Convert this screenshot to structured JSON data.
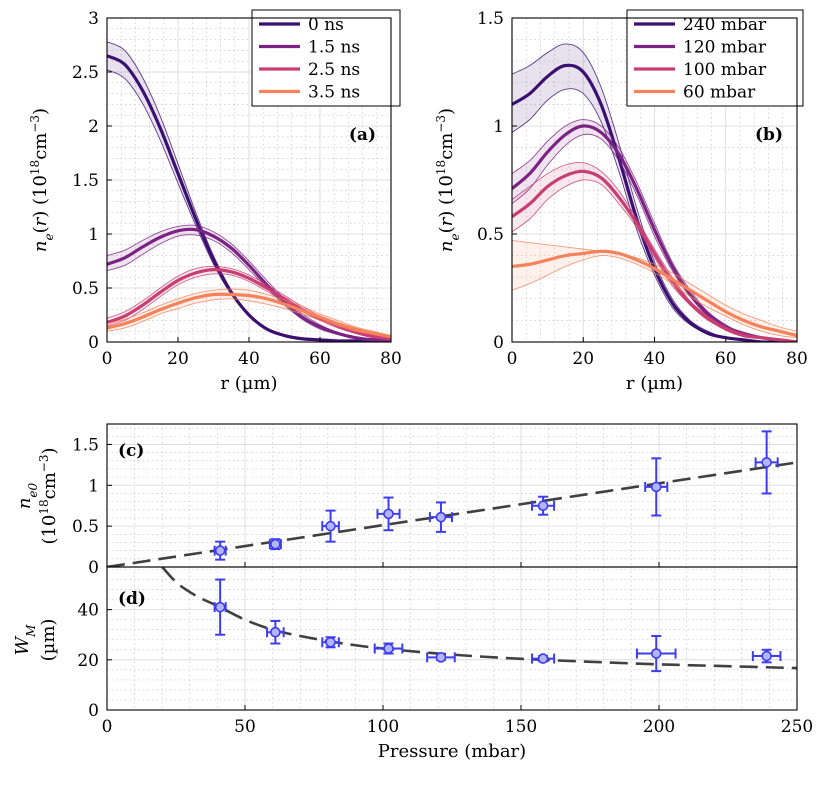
{
  "figure": {
    "background": "#ffffff"
  },
  "chart_data": [
    {
      "id": "a",
      "type": "line",
      "panel_label": "(a)",
      "xlabel": "r (µm)",
      "ylabel": "n_e(r)  (10^18 cm^-3)",
      "xlim": [
        0,
        80
      ],
      "ylim": [
        0,
        3
      ],
      "xticks": [
        0,
        20,
        40,
        60,
        80
      ],
      "xtick_labels": [
        "0",
        "20",
        "40",
        "60",
        "80"
      ],
      "yticks": [
        0,
        0.5,
        1,
        1.5,
        2,
        2.5,
        3
      ],
      "ytick_labels": [
        "0",
        "0.5",
        "1",
        "1.5",
        "2",
        "2.5",
        "3"
      ],
      "legend_position": "top-right",
      "grid": true,
      "series": [
        {
          "name": "0 ns",
          "color": "#3b0f70",
          "x": [
            0,
            5,
            10,
            15,
            20,
            25,
            30,
            35,
            40,
            45,
            50,
            55,
            60,
            65,
            70,
            75,
            80
          ],
          "values": [
            2.65,
            2.57,
            2.33,
            1.98,
            1.56,
            1.14,
            0.76,
            0.46,
            0.25,
            0.12,
            0.06,
            0.03,
            0.02,
            0.01,
            0.01,
            0.0,
            0.0
          ],
          "upper": [
            2.78,
            2.7,
            2.45,
            2.09,
            1.65,
            1.2,
            0.8,
            0.48,
            0.26,
            0.13,
            0.06,
            0.03,
            0.02,
            0.01,
            0.01,
            0.0,
            0.0
          ],
          "lower": [
            2.52,
            2.44,
            2.21,
            1.87,
            1.47,
            1.08,
            0.72,
            0.44,
            0.24,
            0.11,
            0.05,
            0.03,
            0.02,
            0.01,
            0.01,
            0.0,
            0.0
          ]
        },
        {
          "name": "1.5 ns",
          "color": "#7b2382",
          "x": [
            0,
            5,
            10,
            15,
            20,
            25,
            30,
            35,
            40,
            45,
            50,
            55,
            60,
            65,
            70,
            75,
            80
          ],
          "values": [
            0.72,
            0.78,
            0.88,
            0.97,
            1.03,
            1.04,
            0.98,
            0.87,
            0.71,
            0.53,
            0.37,
            0.23,
            0.14,
            0.08,
            0.04,
            0.02,
            0.01
          ],
          "upper": [
            0.8,
            0.85,
            0.94,
            1.02,
            1.07,
            1.08,
            1.02,
            0.91,
            0.75,
            0.57,
            0.4,
            0.26,
            0.16,
            0.09,
            0.05,
            0.02,
            0.01
          ],
          "lower": [
            0.66,
            0.71,
            0.81,
            0.91,
            0.98,
            0.99,
            0.94,
            0.83,
            0.67,
            0.5,
            0.34,
            0.21,
            0.12,
            0.07,
            0.03,
            0.02,
            0.01
          ]
        },
        {
          "name": "2.5 ns",
          "color": "#c83e73",
          "x": [
            0,
            5,
            10,
            15,
            20,
            25,
            30,
            35,
            40,
            45,
            50,
            55,
            60,
            65,
            70,
            75,
            80
          ],
          "values": [
            0.18,
            0.24,
            0.34,
            0.46,
            0.57,
            0.64,
            0.67,
            0.65,
            0.59,
            0.5,
            0.4,
            0.3,
            0.22,
            0.15,
            0.09,
            0.05,
            0.03
          ],
          "upper": [
            0.22,
            0.28,
            0.38,
            0.5,
            0.61,
            0.68,
            0.7,
            0.68,
            0.62,
            0.53,
            0.43,
            0.33,
            0.24,
            0.17,
            0.11,
            0.06,
            0.04
          ],
          "lower": [
            0.15,
            0.2,
            0.3,
            0.42,
            0.53,
            0.6,
            0.63,
            0.62,
            0.56,
            0.47,
            0.37,
            0.28,
            0.2,
            0.13,
            0.08,
            0.04,
            0.02
          ]
        },
        {
          "name": "3.5 ns",
          "color": "#f4835c",
          "x": [
            0,
            5,
            10,
            15,
            20,
            25,
            30,
            35,
            40,
            45,
            50,
            55,
            60,
            65,
            70,
            75,
            80
          ],
          "values": [
            0.13,
            0.17,
            0.23,
            0.3,
            0.36,
            0.41,
            0.44,
            0.44,
            0.43,
            0.4,
            0.35,
            0.29,
            0.23,
            0.17,
            0.12,
            0.08,
            0.05
          ],
          "upper": [
            0.17,
            0.21,
            0.27,
            0.34,
            0.4,
            0.45,
            0.48,
            0.49,
            0.48,
            0.44,
            0.39,
            0.33,
            0.26,
            0.2,
            0.14,
            0.1,
            0.06
          ],
          "lower": [
            0.1,
            0.13,
            0.19,
            0.26,
            0.31,
            0.36,
            0.39,
            0.4,
            0.38,
            0.35,
            0.31,
            0.26,
            0.2,
            0.15,
            0.1,
            0.07,
            0.04
          ]
        }
      ]
    },
    {
      "id": "b",
      "type": "line",
      "panel_label": "(b)",
      "xlabel": "r (µm)",
      "ylabel": "n_e(r)  (10^18 cm^-3)",
      "xlim": [
        0,
        80
      ],
      "ylim": [
        0,
        1.5
      ],
      "xticks": [
        0,
        20,
        40,
        60,
        80
      ],
      "xtick_labels": [
        "0",
        "20",
        "40",
        "60",
        "80"
      ],
      "yticks": [
        0,
        0.5,
        1,
        1.5
      ],
      "ytick_labels": [
        "0",
        "0.5",
        "1",
        "1.5"
      ],
      "legend_position": "top-right",
      "grid": true,
      "series": [
        {
          "name": "240 mbar",
          "color": "#3b0f70",
          "x": [
            0,
            5,
            10,
            15,
            20,
            25,
            30,
            35,
            40,
            45,
            50,
            55,
            60,
            65,
            70,
            75,
            80
          ],
          "values": [
            1.1,
            1.15,
            1.23,
            1.28,
            1.25,
            1.1,
            0.85,
            0.57,
            0.34,
            0.18,
            0.09,
            0.04,
            0.02,
            0.01,
            0.0,
            0.0,
            0.0
          ],
          "upper": [
            1.24,
            1.28,
            1.34,
            1.38,
            1.34,
            1.18,
            0.92,
            0.62,
            0.37,
            0.2,
            0.1,
            0.05,
            0.02,
            0.01,
            0.0,
            0.0,
            0.0
          ],
          "lower": [
            0.97,
            1.03,
            1.12,
            1.17,
            1.15,
            1.02,
            0.79,
            0.52,
            0.31,
            0.16,
            0.08,
            0.04,
            0.02,
            0.01,
            0.0,
            0.0,
            0.0
          ]
        },
        {
          "name": "120 mbar",
          "color": "#7b2382",
          "x": [
            0,
            5,
            10,
            15,
            20,
            25,
            30,
            35,
            40,
            45,
            50,
            55,
            60,
            65,
            70,
            75,
            80
          ],
          "values": [
            0.71,
            0.78,
            0.88,
            0.96,
            1.0,
            0.97,
            0.87,
            0.71,
            0.52,
            0.35,
            0.22,
            0.13,
            0.07,
            0.04,
            0.02,
            0.01,
            0.0
          ],
          "upper": [
            0.78,
            0.84,
            0.93,
            1.0,
            1.03,
            1.0,
            0.9,
            0.74,
            0.55,
            0.37,
            0.24,
            0.14,
            0.08,
            0.04,
            0.02,
            0.01,
            0.0
          ],
          "lower": [
            0.64,
            0.71,
            0.82,
            0.91,
            0.96,
            0.94,
            0.84,
            0.68,
            0.49,
            0.33,
            0.21,
            0.12,
            0.07,
            0.04,
            0.02,
            0.01,
            0.0
          ]
        },
        {
          "name": "100 mbar",
          "color": "#c83e73",
          "x": [
            0,
            5,
            10,
            15,
            20,
            25,
            30,
            35,
            40,
            45,
            50,
            55,
            60,
            65,
            70,
            75,
            80
          ],
          "values": [
            0.58,
            0.64,
            0.72,
            0.77,
            0.79,
            0.76,
            0.67,
            0.55,
            0.41,
            0.28,
            0.18,
            0.11,
            0.06,
            0.03,
            0.02,
            0.01,
            0.0
          ],
          "upper": [
            0.66,
            0.72,
            0.78,
            0.82,
            0.83,
            0.79,
            0.7,
            0.57,
            0.43,
            0.3,
            0.19,
            0.12,
            0.07,
            0.04,
            0.02,
            0.01,
            0.0
          ],
          "lower": [
            0.51,
            0.57,
            0.66,
            0.72,
            0.75,
            0.73,
            0.64,
            0.53,
            0.39,
            0.26,
            0.17,
            0.1,
            0.06,
            0.03,
            0.02,
            0.01,
            0.0
          ]
        },
        {
          "name": "60 mbar",
          "color": "#f4835c",
          "x": [
            0,
            5,
            10,
            15,
            20,
            25,
            30,
            35,
            40,
            45,
            50,
            55,
            60,
            65,
            70,
            75,
            80
          ],
          "values": [
            0.35,
            0.36,
            0.38,
            0.4,
            0.41,
            0.42,
            0.41,
            0.38,
            0.34,
            0.29,
            0.24,
            0.19,
            0.14,
            0.1,
            0.07,
            0.05,
            0.03
          ],
          "upper": [
            0.47,
            0.46,
            0.45,
            0.44,
            0.43,
            0.42,
            0.41,
            0.39,
            0.36,
            0.32,
            0.27,
            0.22,
            0.17,
            0.13,
            0.1,
            0.07,
            0.05
          ],
          "lower": [
            0.24,
            0.27,
            0.31,
            0.35,
            0.38,
            0.4,
            0.39,
            0.36,
            0.32,
            0.27,
            0.21,
            0.16,
            0.12,
            0.08,
            0.05,
            0.03,
            0.02
          ]
        }
      ]
    },
    {
      "id": "c",
      "type": "scatter",
      "panel_label": "(c)",
      "xlabel": "",
      "ylabel": "n_e0 (10^18 cm^-3)",
      "xlim": [
        0,
        250
      ],
      "ylim": [
        0,
        1.75
      ],
      "yticks": [
        0,
        0.5,
        1,
        1.5
      ],
      "ytick_labels": [
        "0",
        "0.5",
        "1",
        "1.5"
      ],
      "grid": true,
      "marker_color": "#3d3df0",
      "marker_fill": "#b4b4ff",
      "points": [
        {
          "x": 41,
          "y": 0.2,
          "xerr": 2,
          "yerr": 0.11
        },
        {
          "x": 61,
          "y": 0.28,
          "xerr": 2,
          "yerr": 0.06
        },
        {
          "x": 81,
          "y": 0.5,
          "xerr": 3,
          "yerr": 0.19
        },
        {
          "x": 102,
          "y": 0.65,
          "xerr": 4,
          "yerr": 0.2
        },
        {
          "x": 121,
          "y": 0.61,
          "xerr": 4,
          "yerr": 0.18
        },
        {
          "x": 158,
          "y": 0.75,
          "xerr": 4,
          "yerr": 0.11
        },
        {
          "x": 199,
          "y": 0.98,
          "xerr": 4,
          "yerr": 0.35
        },
        {
          "x": 239,
          "y": 1.28,
          "xerr": 4,
          "yerr": 0.38
        }
      ],
      "fit": {
        "style": "dashed",
        "color": "#404040",
        "x": [
          0,
          250
        ],
        "y": [
          0,
          1.28
        ]
      }
    },
    {
      "id": "d",
      "type": "scatter",
      "panel_label": "(d)",
      "xlabel": "Pressure (mbar)",
      "ylabel": "W_M (µm)",
      "xlim": [
        0,
        250
      ],
      "ylim": [
        0,
        57
      ],
      "xticks": [
        0,
        50,
        100,
        150,
        200,
        250
      ],
      "xtick_labels": [
        "0",
        "50",
        "100",
        "150",
        "200",
        "250"
      ],
      "yticks": [
        0,
        20,
        40
      ],
      "ytick_labels": [
        "0",
        "20",
        "40"
      ],
      "grid": true,
      "marker_color": "#3d3df0",
      "marker_fill": "#b4b4ff",
      "points": [
        {
          "x": 41,
          "y": 41,
          "xerr": 2,
          "yerr": 11
        },
        {
          "x": 61,
          "y": 31,
          "xerr": 3,
          "yerr": 4.5
        },
        {
          "x": 81,
          "y": 27,
          "xerr": 3,
          "yerr": 2
        },
        {
          "x": 102,
          "y": 24.5,
          "xerr": 5,
          "yerr": 2
        },
        {
          "x": 121,
          "y": 21,
          "xerr": 5,
          "yerr": 1
        },
        {
          "x": 158,
          "y": 20.5,
          "xerr": 4,
          "yerr": 1
        },
        {
          "x": 199,
          "y": 22.5,
          "xerr": 7,
          "yerr": 7
        },
        {
          "x": 239,
          "y": 21.5,
          "xerr": 5,
          "yerr": 2.5
        }
      ],
      "fit": {
        "style": "dashed",
        "color": "#404040",
        "x": [
          20,
          25,
          30,
          35,
          40,
          50,
          60,
          70,
          80,
          90,
          100,
          120,
          140,
          160,
          180,
          200,
          220,
          250
        ],
        "y": [
          57,
          51,
          47,
          44,
          41.5,
          36,
          32,
          29.5,
          27.5,
          25.8,
          24.5,
          22.5,
          21.0,
          19.9,
          19.0,
          18.2,
          17.6,
          16.7
        ]
      }
    }
  ]
}
